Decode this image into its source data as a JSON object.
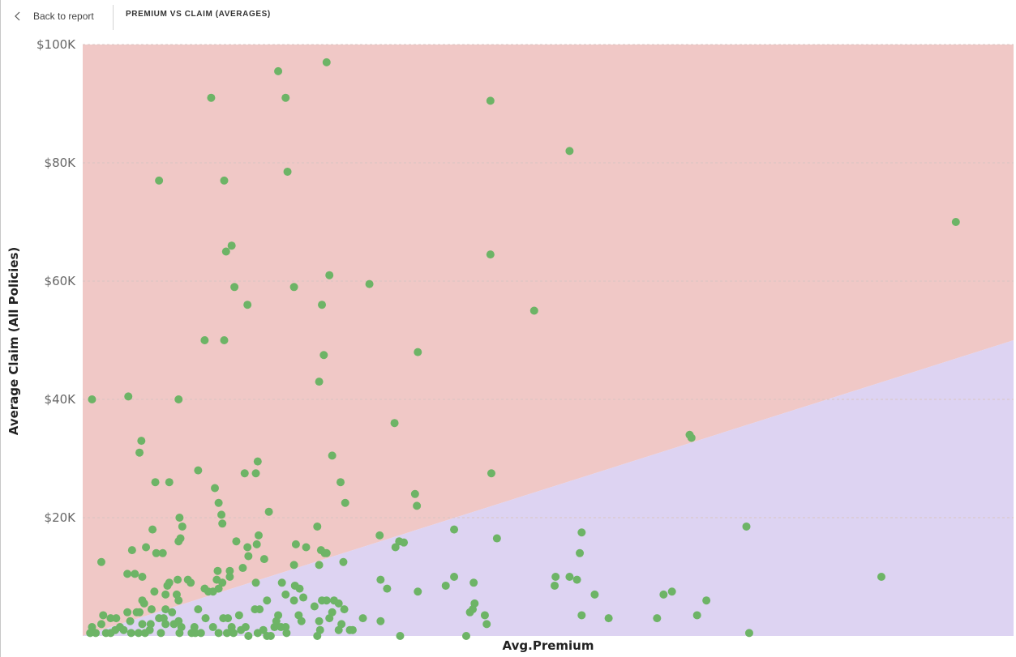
{
  "header": {
    "back_label": "Back to report",
    "title": "PREMIUM VS CLAIM (AVERAGES)"
  },
  "colors": {
    "upper_region": "#f0c8c6",
    "lower_region": "#ddd3f2",
    "points": "#6db466",
    "gridline": "#d9c4c2"
  },
  "chart_data": {
    "type": "scatter",
    "title": "",
    "xlabel": "Avg.Premium",
    "ylabel": "Average Claim (All Policies)",
    "ylim": [
      0,
      100000
    ],
    "xlim": [
      0,
      1000
    ],
    "y_ticks": [
      {
        "value": 20000,
        "label": "$20K"
      },
      {
        "value": 40000,
        "label": "$40K"
      },
      {
        "value": 60000,
        "label": "$60K"
      },
      {
        "value": 80000,
        "label": "$80K"
      },
      {
        "value": 100000,
        "label": "$100K"
      }
    ],
    "grid": true,
    "background_regions": {
      "boundary_line": {
        "x0": 0,
        "y0": 0,
        "x1": 1000,
        "y1": 50000
      },
      "above": "upper_region",
      "below": "lower_region"
    },
    "series": [
      {
        "points": [
          {
            "x": 10,
            "y": 40000
          },
          {
            "x": 49,
            "y": 40500
          },
          {
            "x": 82,
            "y": 77000
          },
          {
            "x": 131,
            "y": 50000
          },
          {
            "x": 138,
            "y": 91000
          },
          {
            "x": 152,
            "y": 77000
          },
          {
            "x": 154,
            "y": 65000
          },
          {
            "x": 160,
            "y": 66000
          },
          {
            "x": 152,
            "y": 50000
          },
          {
            "x": 163,
            "y": 59000
          },
          {
            "x": 177,
            "y": 56000
          },
          {
            "x": 210,
            "y": 95500
          },
          {
            "x": 218,
            "y": 91000
          },
          {
            "x": 220,
            "y": 78500
          },
          {
            "x": 227,
            "y": 59000
          },
          {
            "x": 257,
            "y": 56000
          },
          {
            "x": 259,
            "y": 47500
          },
          {
            "x": 265,
            "y": 61000
          },
          {
            "x": 254,
            "y": 43000
          },
          {
            "x": 262,
            "y": 97000
          },
          {
            "x": 308,
            "y": 59500
          },
          {
            "x": 360,
            "y": 48000
          },
          {
            "x": 335,
            "y": 36000
          },
          {
            "x": 438,
            "y": 90500
          },
          {
            "x": 438,
            "y": 64500
          },
          {
            "x": 485,
            "y": 55000
          },
          {
            "x": 523,
            "y": 82000
          },
          {
            "x": 938,
            "y": 70000
          },
          {
            "x": 652,
            "y": 34000
          },
          {
            "x": 654,
            "y": 33500
          },
          {
            "x": 439,
            "y": 27500
          },
          {
            "x": 63,
            "y": 33000
          },
          {
            "x": 61,
            "y": 31000
          },
          {
            "x": 103,
            "y": 40000
          },
          {
            "x": 124,
            "y": 28000
          },
          {
            "x": 78,
            "y": 26000
          },
          {
            "x": 93,
            "y": 26000
          },
          {
            "x": 142,
            "y": 25000
          },
          {
            "x": 146,
            "y": 22500
          },
          {
            "x": 149,
            "y": 20500
          },
          {
            "x": 150,
            "y": 19000
          },
          {
            "x": 174,
            "y": 27500
          },
          {
            "x": 186,
            "y": 27500
          },
          {
            "x": 188,
            "y": 29500
          },
          {
            "x": 268,
            "y": 30500
          },
          {
            "x": 277,
            "y": 26000
          },
          {
            "x": 282,
            "y": 22500
          },
          {
            "x": 357,
            "y": 24000
          },
          {
            "x": 359,
            "y": 22000
          },
          {
            "x": 200,
            "y": 21000
          },
          {
            "x": 104,
            "y": 20000
          },
          {
            "x": 107,
            "y": 18500
          },
          {
            "x": 75,
            "y": 18000
          },
          {
            "x": 105,
            "y": 16500
          },
          {
            "x": 103,
            "y": 16000
          },
          {
            "x": 189,
            "y": 17000
          },
          {
            "x": 187,
            "y": 15500
          },
          {
            "x": 165,
            "y": 16000
          },
          {
            "x": 229,
            "y": 15500
          },
          {
            "x": 240,
            "y": 15000
          },
          {
            "x": 252,
            "y": 18500
          },
          {
            "x": 256,
            "y": 14500
          },
          {
            "x": 260,
            "y": 14000
          },
          {
            "x": 280,
            "y": 12500
          },
          {
            "x": 319,
            "y": 17000
          },
          {
            "x": 336,
            "y": 15000
          },
          {
            "x": 340,
            "y": 16000
          },
          {
            "x": 345,
            "y": 15800
          },
          {
            "x": 399,
            "y": 18000
          },
          {
            "x": 445,
            "y": 16500
          },
          {
            "x": 536,
            "y": 17500
          },
          {
            "x": 534,
            "y": 14000
          },
          {
            "x": 713,
            "y": 18500
          },
          {
            "x": 858,
            "y": 10000
          },
          {
            "x": 68,
            "y": 15000
          },
          {
            "x": 53,
            "y": 14500
          },
          {
            "x": 79,
            "y": 14000
          },
          {
            "x": 86,
            "y": 14000
          },
          {
            "x": 20,
            "y": 12500
          },
          {
            "x": 48,
            "y": 10500
          },
          {
            "x": 56,
            "y": 10500
          },
          {
            "x": 64,
            "y": 10000
          },
          {
            "x": 93,
            "y": 9000
          },
          {
            "x": 91,
            "y": 8500
          },
          {
            "x": 102,
            "y": 9500
          },
          {
            "x": 113,
            "y": 9500
          },
          {
            "x": 116,
            "y": 9000
          },
          {
            "x": 145,
            "y": 11000
          },
          {
            "x": 158,
            "y": 11000
          },
          {
            "x": 144,
            "y": 9500
          },
          {
            "x": 150,
            "y": 9000
          },
          {
            "x": 146,
            "y": 8000
          },
          {
            "x": 158,
            "y": 10000
          },
          {
            "x": 172,
            "y": 11500
          },
          {
            "x": 177,
            "y": 15000
          },
          {
            "x": 178,
            "y": 13500
          },
          {
            "x": 195,
            "y": 13000
          },
          {
            "x": 227,
            "y": 12000
          },
          {
            "x": 262,
            "y": 14000
          },
          {
            "x": 254,
            "y": 12000
          },
          {
            "x": 320,
            "y": 9500
          },
          {
            "x": 399,
            "y": 10000
          },
          {
            "x": 420,
            "y": 9000
          },
          {
            "x": 390,
            "y": 8500
          },
          {
            "x": 508,
            "y": 10000
          },
          {
            "x": 523,
            "y": 10000
          },
          {
            "x": 507,
            "y": 8500
          },
          {
            "x": 531,
            "y": 9500
          },
          {
            "x": 64,
            "y": 6000
          },
          {
            "x": 77,
            "y": 7500
          },
          {
            "x": 89,
            "y": 7000
          },
          {
            "x": 101,
            "y": 7000
          },
          {
            "x": 103,
            "y": 6000
          },
          {
            "x": 131,
            "y": 8000
          },
          {
            "x": 135,
            "y": 7500
          },
          {
            "x": 140,
            "y": 7500
          },
          {
            "x": 186,
            "y": 9000
          },
          {
            "x": 214,
            "y": 9000
          },
          {
            "x": 228,
            "y": 8500
          },
          {
            "x": 233,
            "y": 8000
          },
          {
            "x": 218,
            "y": 7000
          },
          {
            "x": 198,
            "y": 6000
          },
          {
            "x": 227,
            "y": 6000
          },
          {
            "x": 237,
            "y": 6500
          },
          {
            "x": 262,
            "y": 6000
          },
          {
            "x": 257,
            "y": 6000
          },
          {
            "x": 275,
            "y": 5500
          },
          {
            "x": 270,
            "y": 6000
          },
          {
            "x": 327,
            "y": 8000
          },
          {
            "x": 360,
            "y": 7500
          },
          {
            "x": 421,
            "y": 5500
          },
          {
            "x": 550,
            "y": 7000
          },
          {
            "x": 624,
            "y": 7000
          },
          {
            "x": 633,
            "y": 7500
          },
          {
            "x": 670,
            "y": 6000
          },
          {
            "x": 48,
            "y": 4000
          },
          {
            "x": 58,
            "y": 4000
          },
          {
            "x": 61,
            "y": 4000
          },
          {
            "x": 66,
            "y": 5500
          },
          {
            "x": 74,
            "y": 4500
          },
          {
            "x": 89,
            "y": 4500
          },
          {
            "x": 96,
            "y": 4000
          },
          {
            "x": 124,
            "y": 4500
          },
          {
            "x": 168,
            "y": 3500
          },
          {
            "x": 185,
            "y": 4500
          },
          {
            "x": 190,
            "y": 4500
          },
          {
            "x": 210,
            "y": 3500
          },
          {
            "x": 249,
            "y": 5000
          },
          {
            "x": 268,
            "y": 4000
          },
          {
            "x": 281,
            "y": 4500
          },
          {
            "x": 416,
            "y": 4000
          },
          {
            "x": 419,
            "y": 4500
          },
          {
            "x": 432,
            "y": 3500
          },
          {
            "x": 536,
            "y": 3500
          },
          {
            "x": 565,
            "y": 3000
          },
          {
            "x": 617,
            "y": 3000
          },
          {
            "x": 660,
            "y": 3500
          },
          {
            "x": 22,
            "y": 3500
          },
          {
            "x": 30,
            "y": 3000
          },
          {
            "x": 36,
            "y": 3000
          },
          {
            "x": 82,
            "y": 3000
          },
          {
            "x": 87,
            "y": 3000
          },
          {
            "x": 132,
            "y": 3000
          },
          {
            "x": 151,
            "y": 3000
          },
          {
            "x": 156,
            "y": 3000
          },
          {
            "x": 208,
            "y": 2500
          },
          {
            "x": 235,
            "y": 2500
          },
          {
            "x": 232,
            "y": 3500
          },
          {
            "x": 254,
            "y": 2500
          },
          {
            "x": 265,
            "y": 3000
          },
          {
            "x": 278,
            "y": 2000
          },
          {
            "x": 301,
            "y": 3000
          },
          {
            "x": 320,
            "y": 2500
          },
          {
            "x": 434,
            "y": 2000
          },
          {
            "x": 10,
            "y": 1500
          },
          {
            "x": 20,
            "y": 2000
          },
          {
            "x": 40,
            "y": 1500
          },
          {
            "x": 51,
            "y": 2500
          },
          {
            "x": 64,
            "y": 2000
          },
          {
            "x": 73,
            "y": 2000
          },
          {
            "x": 89,
            "y": 2000
          },
          {
            "x": 98,
            "y": 2000
          },
          {
            "x": 103,
            "y": 2500
          },
          {
            "x": 106,
            "y": 1500
          },
          {
            "x": 120,
            "y": 1500
          },
          {
            "x": 140,
            "y": 1500
          },
          {
            "x": 160,
            "y": 1500
          },
          {
            "x": 170,
            "y": 1000
          },
          {
            "x": 175,
            "y": 1500
          },
          {
            "x": 194,
            "y": 1000
          },
          {
            "x": 206,
            "y": 1500
          },
          {
            "x": 213,
            "y": 1500
          },
          {
            "x": 218,
            "y": 1500
          },
          {
            "x": 255,
            "y": 1000
          },
          {
            "x": 275,
            "y": 1000
          },
          {
            "x": 287,
            "y": 1000
          },
          {
            "x": 290,
            "y": 1000
          },
          {
            "x": 8,
            "y": 500
          },
          {
            "x": 14,
            "y": 500
          },
          {
            "x": 25,
            "y": 500
          },
          {
            "x": 30,
            "y": 500
          },
          {
            "x": 35,
            "y": 1000
          },
          {
            "x": 44,
            "y": 1000
          },
          {
            "x": 52,
            "y": 500
          },
          {
            "x": 60,
            "y": 500
          },
          {
            "x": 67,
            "y": 500
          },
          {
            "x": 72,
            "y": 1000
          },
          {
            "x": 84,
            "y": 500
          },
          {
            "x": 104,
            "y": 500
          },
          {
            "x": 117,
            "y": 500
          },
          {
            "x": 121,
            "y": 500
          },
          {
            "x": 127,
            "y": 500
          },
          {
            "x": 146,
            "y": 500
          },
          {
            "x": 155,
            "y": 500
          },
          {
            "x": 162,
            "y": 500
          },
          {
            "x": 178,
            "y": 0
          },
          {
            "x": 188,
            "y": 500
          },
          {
            "x": 198,
            "y": 0
          },
          {
            "x": 202,
            "y": 0
          },
          {
            "x": 219,
            "y": 500
          },
          {
            "x": 252,
            "y": 0
          },
          {
            "x": 341,
            "y": 0
          },
          {
            "x": 412,
            "y": 0
          },
          {
            "x": 716,
            "y": 500
          }
        ]
      }
    ]
  }
}
